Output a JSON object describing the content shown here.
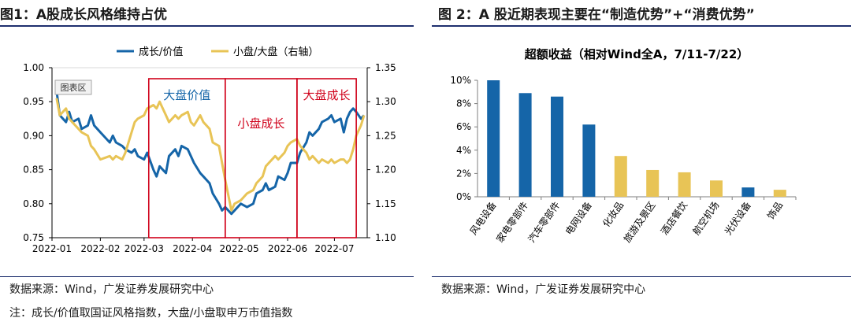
{
  "left": {
    "title": "图1：A股成长风格维持占优",
    "source": "数据来源：Wind，广发证券发展研究中心",
    "note": "注：成长/价值取国证风格指数，大盘/小盘取申万市值指数",
    "chart_area_label": "图表区",
    "colors": {
      "growth_value": "#1565a8",
      "small_large": "#e8c456",
      "box": "#d0021b",
      "box_text_blue": "#1565a8",
      "box_text_red": "#d0021b"
    },
    "boxes": [
      {
        "label": "大盘价值",
        "start": "2022-03-04",
        "end": "2022-04-22",
        "label_color": "box_text_blue"
      },
      {
        "label": "小盘成长",
        "start": "2022-04-22",
        "end": "2022-06-07",
        "label_color": "box_text_red"
      },
      {
        "label": "大盘成长",
        "start": "2022-06-07",
        "end": "2022-07-15",
        "label_color": "box_text_red"
      }
    ]
  },
  "right": {
    "title": "图 2：A 股近期表现主要在“制造优势”+“消费优势”",
    "source": "数据来源：Wind，广发证券发展研究中心",
    "colors": {
      "manufacturing": "#1565a8",
      "consumer": "#e8c456"
    }
  },
  "chart_data": [
    {
      "type": "line",
      "xlim": [
        "2022-01-01",
        "2022-07-22"
      ],
      "x_ticks": [
        "2022-01",
        "2022-02",
        "2022-03",
        "2022-04",
        "2022-05",
        "2022-06",
        "2022-07"
      ],
      "ylim": [
        0.75,
        1.0
      ],
      "y_ticks": [
        "0.75",
        "0.80",
        "0.85",
        "0.90",
        "0.95",
        "1.00"
      ],
      "y2lim": [
        1.1,
        1.35
      ],
      "y2_ticks": [
        "1.10",
        "1.15",
        "1.20",
        "1.25",
        "1.30",
        "1.35"
      ],
      "legend_position": "top",
      "grid": false,
      "series": [
        {
          "name": "成长/价值",
          "axis": "left",
          "color_key": "growth_value",
          "points": [
            [
              "2022-01-04",
              0.965
            ],
            [
              "2022-01-06",
              0.93
            ],
            [
              "2022-01-10",
              0.92
            ],
            [
              "2022-01-12",
              0.935
            ],
            [
              "2022-01-14",
              0.92
            ],
            [
              "2022-01-18",
              0.925
            ],
            [
              "2022-01-20",
              0.91
            ],
            [
              "2022-01-24",
              0.915
            ],
            [
              "2022-01-26",
              0.93
            ],
            [
              "2022-01-28",
              0.915
            ],
            [
              "2022-02-01",
              0.905
            ],
            [
              "2022-02-07",
              0.89
            ],
            [
              "2022-02-09",
              0.9
            ],
            [
              "2022-02-11",
              0.89
            ],
            [
              "2022-02-15",
              0.885
            ],
            [
              "2022-02-17",
              0.88
            ],
            [
              "2022-02-21",
              0.875
            ],
            [
              "2022-02-23",
              0.88
            ],
            [
              "2022-02-25",
              0.87
            ],
            [
              "2022-03-01",
              0.865
            ],
            [
              "2022-03-03",
              0.875
            ],
            [
              "2022-03-07",
              0.85
            ],
            [
              "2022-03-09",
              0.84
            ],
            [
              "2022-03-11",
              0.855
            ],
            [
              "2022-03-15",
              0.845
            ],
            [
              "2022-03-17",
              0.87
            ],
            [
              "2022-03-21",
              0.88
            ],
            [
              "2022-03-23",
              0.87
            ],
            [
              "2022-03-25",
              0.885
            ],
            [
              "2022-03-29",
              0.88
            ],
            [
              "2022-03-31",
              0.87
            ],
            [
              "2022-04-02",
              0.86
            ],
            [
              "2022-04-06",
              0.845
            ],
            [
              "2022-04-08",
              0.84
            ],
            [
              "2022-04-12",
              0.83
            ],
            [
              "2022-04-14",
              0.815
            ],
            [
              "2022-04-18",
              0.8
            ],
            [
              "2022-04-20",
              0.79
            ],
            [
              "2022-04-22",
              0.795
            ],
            [
              "2022-04-26",
              0.785
            ],
            [
              "2022-04-28",
              0.79
            ],
            [
              "2022-05-02",
              0.8
            ],
            [
              "2022-05-06",
              0.795
            ],
            [
              "2022-05-10",
              0.8
            ],
            [
              "2022-05-12",
              0.815
            ],
            [
              "2022-05-16",
              0.82
            ],
            [
              "2022-05-18",
              0.83
            ],
            [
              "2022-05-20",
              0.82
            ],
            [
              "2022-05-24",
              0.825
            ],
            [
              "2022-05-26",
              0.84
            ],
            [
              "2022-05-30",
              0.835
            ],
            [
              "2022-06-01",
              0.845
            ],
            [
              "2022-06-03",
              0.86
            ],
            [
              "2022-06-07",
              0.86
            ],
            [
              "2022-06-09",
              0.875
            ],
            [
              "2022-06-13",
              0.89
            ],
            [
              "2022-06-15",
              0.905
            ],
            [
              "2022-06-17",
              0.9
            ],
            [
              "2022-06-21",
              0.91
            ],
            [
              "2022-06-23",
              0.92
            ],
            [
              "2022-06-27",
              0.925
            ],
            [
              "2022-06-29",
              0.93
            ],
            [
              "2022-07-01",
              0.92
            ],
            [
              "2022-07-05",
              0.925
            ],
            [
              "2022-07-07",
              0.905
            ],
            [
              "2022-07-09",
              0.925
            ],
            [
              "2022-07-11",
              0.935
            ],
            [
              "2022-07-13",
              0.94
            ],
            [
              "2022-07-15",
              0.935
            ],
            [
              "2022-07-18",
              0.925
            ],
            [
              "2022-07-20",
              0.93
            ]
          ]
        },
        {
          "name": "小盘/大盘（右轴）",
          "axis": "right",
          "color_key": "small_large",
          "points": [
            [
              "2022-01-04",
              1.305
            ],
            [
              "2022-01-06",
              1.28
            ],
            [
              "2022-01-10",
              1.29
            ],
            [
              "2022-01-12",
              1.275
            ],
            [
              "2022-01-14",
              1.27
            ],
            [
              "2022-01-18",
              1.26
            ],
            [
              "2022-01-20",
              1.255
            ],
            [
              "2022-01-24",
              1.25
            ],
            [
              "2022-01-26",
              1.235
            ],
            [
              "2022-01-28",
              1.23
            ],
            [
              "2022-02-01",
              1.215
            ],
            [
              "2022-02-07",
              1.22
            ],
            [
              "2022-02-09",
              1.215
            ],
            [
              "2022-02-11",
              1.22
            ],
            [
              "2022-02-15",
              1.215
            ],
            [
              "2022-02-17",
              1.225
            ],
            [
              "2022-02-21",
              1.255
            ],
            [
              "2022-02-23",
              1.27
            ],
            [
              "2022-02-25",
              1.275
            ],
            [
              "2022-03-01",
              1.28
            ],
            [
              "2022-03-03",
              1.29
            ],
            [
              "2022-03-07",
              1.295
            ],
            [
              "2022-03-09",
              1.29
            ],
            [
              "2022-03-11",
              1.3
            ],
            [
              "2022-03-15",
              1.28
            ],
            [
              "2022-03-17",
              1.27
            ],
            [
              "2022-03-21",
              1.28
            ],
            [
              "2022-03-23",
              1.275
            ],
            [
              "2022-03-25",
              1.28
            ],
            [
              "2022-03-29",
              1.285
            ],
            [
              "2022-03-31",
              1.27
            ],
            [
              "2022-04-02",
              1.265
            ],
            [
              "2022-04-06",
              1.28
            ],
            [
              "2022-04-08",
              1.27
            ],
            [
              "2022-04-12",
              1.26
            ],
            [
              "2022-04-14",
              1.24
            ],
            [
              "2022-04-18",
              1.235
            ],
            [
              "2022-04-20",
              1.21
            ],
            [
              "2022-04-22",
              1.185
            ],
            [
              "2022-04-26",
              1.14
            ],
            [
              "2022-04-28",
              1.15
            ],
            [
              "2022-05-02",
              1.155
            ],
            [
              "2022-05-06",
              1.165
            ],
            [
              "2022-05-10",
              1.17
            ],
            [
              "2022-05-12",
              1.18
            ],
            [
              "2022-05-16",
              1.19
            ],
            [
              "2022-05-18",
              1.205
            ],
            [
              "2022-05-20",
              1.21
            ],
            [
              "2022-05-24",
              1.22
            ],
            [
              "2022-05-26",
              1.215
            ],
            [
              "2022-05-30",
              1.225
            ],
            [
              "2022-06-01",
              1.235
            ],
            [
              "2022-06-03",
              1.24
            ],
            [
              "2022-06-07",
              1.245
            ],
            [
              "2022-06-09",
              1.235
            ],
            [
              "2022-06-13",
              1.225
            ],
            [
              "2022-06-15",
              1.215
            ],
            [
              "2022-06-17",
              1.22
            ],
            [
              "2022-06-21",
              1.21
            ],
            [
              "2022-06-23",
              1.215
            ],
            [
              "2022-06-27",
              1.21
            ],
            [
              "2022-06-29",
              1.215
            ],
            [
              "2022-07-01",
              1.21
            ],
            [
              "2022-07-05",
              1.215
            ],
            [
              "2022-07-07",
              1.215
            ],
            [
              "2022-07-09",
              1.21
            ],
            [
              "2022-07-11",
              1.215
            ],
            [
              "2022-07-13",
              1.23
            ],
            [
              "2022-07-15",
              1.25
            ],
            [
              "2022-07-18",
              1.265
            ],
            [
              "2022-07-20",
              1.28
            ]
          ]
        }
      ]
    },
    {
      "type": "bar",
      "title": "超额收益（相对Wind全A，7/11-7/22）",
      "categories": [
        "风电设备",
        "家电零部件",
        "汽车零部件",
        "电网设备",
        "化妆品",
        "旅游及景区",
        "酒店餐饮",
        "航空机场",
        "光伏设备",
        "饰品"
      ],
      "values": [
        0.1,
        0.089,
        0.086,
        0.062,
        0.035,
        0.023,
        0.021,
        0.014,
        0.008,
        0.006
      ],
      "value_format": "percent",
      "colors": [
        "manufacturing",
        "manufacturing",
        "manufacturing",
        "manufacturing",
        "consumer",
        "consumer",
        "consumer",
        "consumer",
        "manufacturing",
        "consumer"
      ],
      "ylim": [
        0,
        0.1
      ],
      "y_ticks": [
        "0%",
        "2%",
        "4%",
        "6%",
        "8%",
        "10%"
      ],
      "grid": false
    }
  ]
}
